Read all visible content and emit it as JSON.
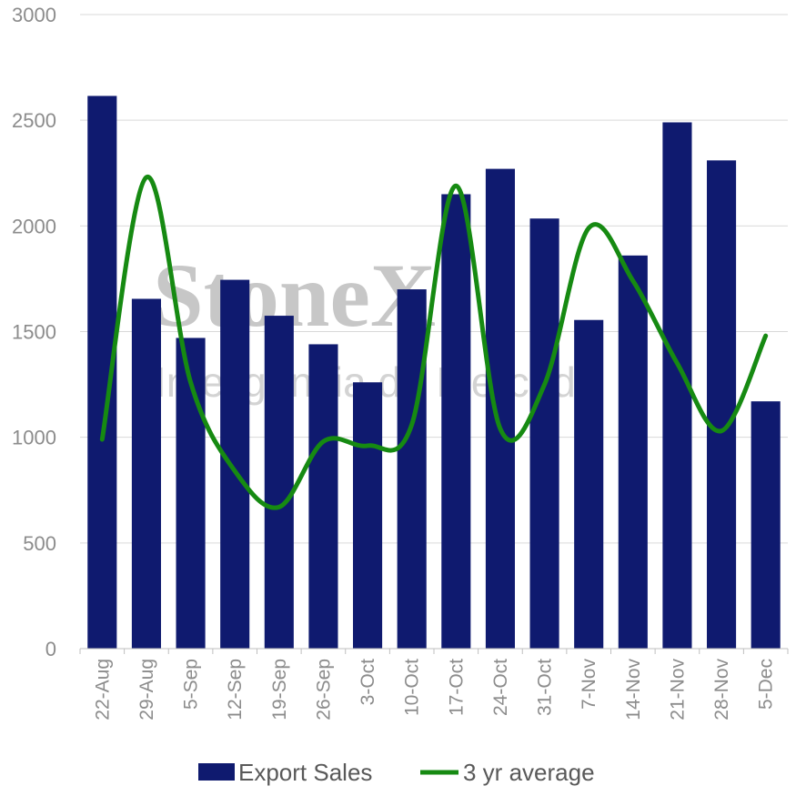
{
  "watermark": {
    "brand": "StoneX",
    "tagline": "Inteligência de Mercado"
  },
  "chart_data": {
    "type": "bar",
    "categories": [
      "22-Aug",
      "29-Aug",
      "5-Sep",
      "12-Sep",
      "19-Sep",
      "26-Sep",
      "3-Oct",
      "10-Oct",
      "17-Oct",
      "24-Oct",
      "31-Oct",
      "7-Nov",
      "14-Nov",
      "21-Nov",
      "28-Nov",
      "5-Dec"
    ],
    "series": [
      {
        "name": "Export Sales",
        "type": "bar",
        "color": "#0f1a6f",
        "values": [
          2615,
          1655,
          1470,
          1745,
          1575,
          1440,
          1260,
          1700,
          2150,
          2270,
          2035,
          1555,
          1860,
          2490,
          2310,
          1170
        ]
      },
      {
        "name": "3 yr average",
        "type": "line",
        "smooth": true,
        "color": "#168a12",
        "values": [
          990,
          2230,
          1260,
          840,
          670,
          980,
          960,
          1060,
          2190,
          1040,
          1250,
          1990,
          1740,
          1350,
          1030,
          1480
        ]
      }
    ],
    "ylim": [
      0,
      3000
    ],
    "yticks": [
      "0",
      "500",
      "1000",
      "1500",
      "2000",
      "2500",
      "3000"
    ],
    "grid": true,
    "legend_position": "bottom"
  }
}
